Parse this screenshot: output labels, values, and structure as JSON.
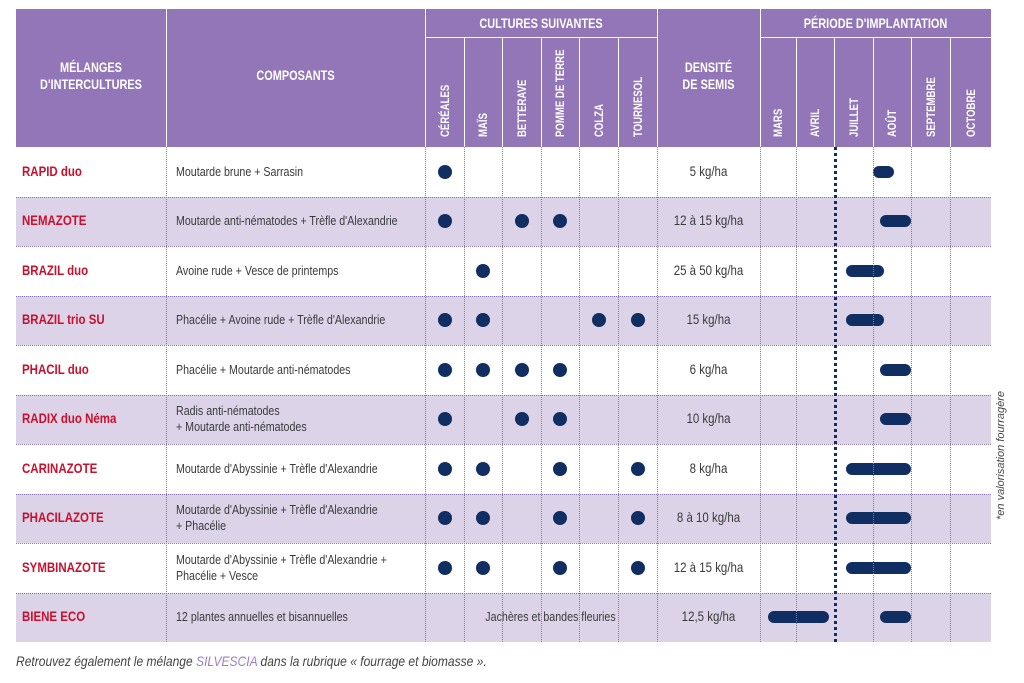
{
  "header": {
    "col_melange": [
      "MÉLANGES",
      "D'INTERCULTURES"
    ],
    "col_composants": "COMPOSANTS",
    "group_cultures": "CULTURES SUIVANTES",
    "cultures": [
      "CÉRÉALES",
      "MAÏS",
      "BETTERAVE",
      "POMME DE TERRE",
      "COLZA",
      "TOURNESOL"
    ],
    "col_densite": [
      "DENSITÉ",
      "DE SEMIS"
    ],
    "group_periode": "PÉRIODE D'IMPLANTATION",
    "mois": [
      "MARS",
      "AVRIL",
      "JUILLET",
      "AOÛT",
      "SEPTEMBRE",
      "OCTOBRE"
    ]
  },
  "rows": [
    {
      "name": "RAPID duo",
      "composants": [
        "Moutarde brune + Sarrasin"
      ],
      "cultures": [
        true,
        false,
        false,
        false,
        false,
        false
      ],
      "densite": "5 kg/ha",
      "periode_label": "",
      "periode": [
        1.0,
        1.55
      ]
    },
    {
      "name": "NEMAZOTE",
      "composants": [
        "Moutarde anti-nématodes + Trèfle d'Alexandrie"
      ],
      "cultures": [
        true,
        false,
        true,
        true,
        false,
        false
      ],
      "densite": "12 à 15 kg/ha",
      "periode_label": "",
      "periode": [
        1.2,
        2.0
      ]
    },
    {
      "name": "BRAZIL duo",
      "composants": [
        "Avoine rude + Vesce de printemps"
      ],
      "cultures": [
        false,
        true,
        false,
        false,
        false,
        false
      ],
      "densite": "25 à 50 kg/ha",
      "periode_label": "",
      "periode": [
        0.3,
        1.3
      ]
    },
    {
      "name": "BRAZIL trio SU",
      "composants": [
        "Phacélie + Avoine rude + Trèfle d'Alexandrie"
      ],
      "cultures": [
        true,
        true,
        false,
        false,
        true,
        true
      ],
      "densite": "15 kg/ha",
      "periode_label": "",
      "periode": [
        0.3,
        1.3
      ]
    },
    {
      "name": "PHACIL duo",
      "composants": [
        "Phacélie + Moutarde anti-nématodes"
      ],
      "cultures": [
        true,
        true,
        true,
        true,
        false,
        false
      ],
      "densite": "6 kg/ha",
      "periode_label": "",
      "periode": [
        1.2,
        2.0
      ]
    },
    {
      "name": "RADIX duo Néma",
      "composants": [
        "Radis anti-nématodes",
        "+ Moutarde anti-nématodes"
      ],
      "cultures": [
        true,
        false,
        true,
        true,
        false,
        false
      ],
      "densite": "10 kg/ha",
      "periode_label": "",
      "periode": [
        1.2,
        2.0
      ]
    },
    {
      "name": "CARINAZOTE",
      "composants": [
        "Moutarde d'Abyssinie + Trèfle d'Alexandrie"
      ],
      "cultures": [
        true,
        true,
        false,
        true,
        false,
        true
      ],
      "densite": "8 kg/ha",
      "periode_label": "",
      "periode": [
        0.3,
        2.0
      ]
    },
    {
      "name": "PHACILAZOTE",
      "composants": [
        "Moutarde d'Abyssinie + Trèfle d'Alexandrie",
        "+ Phacélie"
      ],
      "cultures": [
        true,
        true,
        false,
        true,
        false,
        true
      ],
      "densite": "8 à 10 kg/ha",
      "periode_label": "",
      "periode": [
        0.3,
        2.0
      ]
    },
    {
      "name": "SYMBINAZOTE",
      "composants": [
        "Moutarde d'Abyssinie + Trèfle d'Alexandrie +",
        "Phacélie + Vesce"
      ],
      "cultures": [
        true,
        true,
        false,
        true,
        false,
        true
      ],
      "densite": "12 à 15 kg/ha",
      "periode_label": "",
      "periode": [
        0.3,
        2.0
      ]
    },
    {
      "name": "BIENE ECO",
      "composants": [
        "12 plantes annuelles et bisannuelles"
      ],
      "cultures": null,
      "cultures_text": "Jachères et bandes fleuries",
      "densite": "12,5 kg/ha",
      "periode_spring": [
        0.2,
        1.8
      ],
      "periode": [
        1.2,
        2.0
      ]
    }
  ],
  "footer": {
    "prefix": "Retrouvez également le mélange ",
    "highlight": "SILVESCIA",
    "suffix": " dans la rubrique « fourrage et biomasse »."
  },
  "sidenote": "*en valorisation fourragère",
  "colors": {
    "header": "#9276b8",
    "row_alt": "#dcd3e8",
    "name": "#c8102e",
    "mark": "#102e62"
  }
}
